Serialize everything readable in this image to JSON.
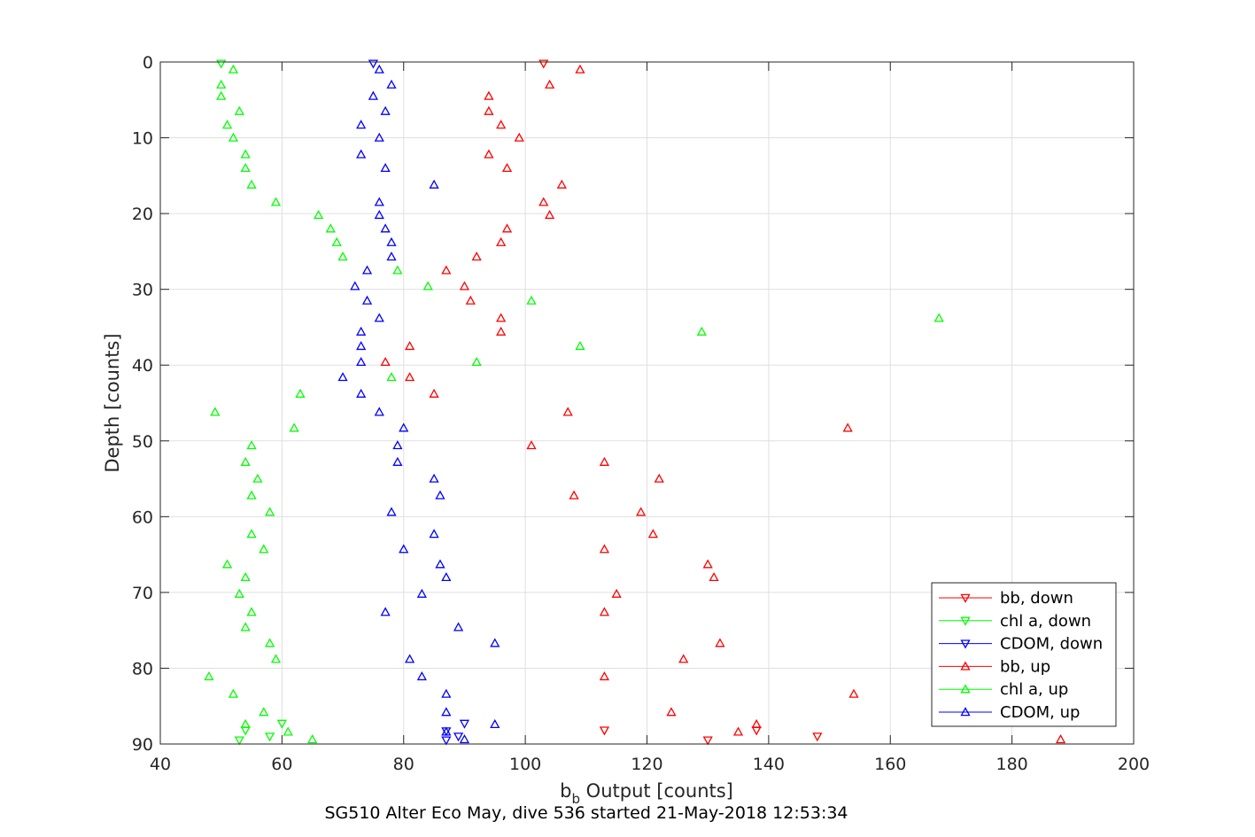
{
  "chart_data": {
    "type": "scatter",
    "xlabel_main": "b",
    "xlabel_sub": "b",
    "xlabel_rest": " Output [counts]",
    "ylabel": "Depth [counts]",
    "caption": "SG510 Alter Eco May, dive 536 started 21-May-2018 12:53:34",
    "xlim": [
      40,
      200
    ],
    "ylim": [
      0,
      90
    ],
    "y_reversed": true,
    "grid": true,
    "x_ticks": [
      40,
      60,
      80,
      100,
      120,
      140,
      160,
      180,
      200
    ],
    "y_ticks": [
      0,
      10,
      20,
      30,
      40,
      50,
      60,
      70,
      80,
      90
    ],
    "legend_position": "bottom-right",
    "colors": {
      "red": "#ff0000",
      "green": "#00ff00",
      "blue": "#0000ff"
    },
    "series": [
      {
        "name": "bb, down",
        "color": "#ff0000",
        "marker": "triangle-down",
        "points": [
          [
            103,
            0.2
          ],
          [
            113,
            88.2
          ],
          [
            138,
            88.2
          ],
          [
            148,
            89
          ],
          [
            130,
            89.5
          ]
        ]
      },
      {
        "name": "chl a, down",
        "color": "#00ff00",
        "marker": "triangle-down",
        "points": [
          [
            50,
            0.2
          ],
          [
            60,
            87.3
          ],
          [
            54,
            88.2
          ],
          [
            58,
            89
          ],
          [
            53,
            89.5
          ]
        ]
      },
      {
        "name": "CDOM, down",
        "color": "#0000ff",
        "marker": "triangle-down",
        "points": [
          [
            75,
            0.2
          ],
          [
            90,
            87.3
          ],
          [
            87,
            88.3
          ],
          [
            89,
            89
          ],
          [
            87,
            89.5
          ]
        ]
      },
      {
        "name": "bb, up",
        "color": "#ff0000",
        "marker": "triangle-up",
        "points": [
          [
            109,
            1
          ],
          [
            104,
            3
          ],
          [
            94,
            4.5
          ],
          [
            94,
            6.5
          ],
          [
            96,
            8.3
          ],
          [
            99,
            10
          ],
          [
            94,
            12.2
          ],
          [
            97,
            14
          ],
          [
            106,
            16.2
          ],
          [
            103,
            18.5
          ],
          [
            104,
            20.2
          ],
          [
            97,
            22
          ],
          [
            96,
            23.8
          ],
          [
            92,
            25.7
          ],
          [
            87,
            27.5
          ],
          [
            90,
            29.6
          ],
          [
            91,
            31.5
          ],
          [
            96,
            33.8
          ],
          [
            96,
            35.6
          ],
          [
            81,
            37.5
          ],
          [
            77,
            39.6
          ],
          [
            81,
            41.6
          ],
          [
            85,
            43.8
          ],
          [
            107,
            46.2
          ],
          [
            153,
            48.3
          ],
          [
            101,
            50.6
          ],
          [
            113,
            52.8
          ],
          [
            122,
            55
          ],
          [
            108,
            57.2
          ],
          [
            119,
            59.4
          ],
          [
            121,
            62.3
          ],
          [
            113,
            64.3
          ],
          [
            130,
            66.3
          ],
          [
            131,
            68
          ],
          [
            115,
            70.2
          ],
          [
            113,
            72.6
          ],
          [
            132,
            76.7
          ],
          [
            126,
            78.8
          ],
          [
            113,
            81.1
          ],
          [
            154,
            83.4
          ],
          [
            124,
            85.8
          ],
          [
            138,
            87.4
          ],
          [
            135,
            88.4
          ],
          [
            188,
            89.4
          ]
        ]
      },
      {
        "name": "chl a, up",
        "color": "#00ff00",
        "marker": "triangle-up",
        "points": [
          [
            52,
            1
          ],
          [
            50,
            3
          ],
          [
            50,
            4.5
          ],
          [
            53,
            6.5
          ],
          [
            51,
            8.3
          ],
          [
            52,
            10
          ],
          [
            54,
            12.2
          ],
          [
            54,
            14
          ],
          [
            55,
            16.2
          ],
          [
            59,
            18.5
          ],
          [
            66,
            20.2
          ],
          [
            68,
            22
          ],
          [
            69,
            23.8
          ],
          [
            70,
            25.7
          ],
          [
            79,
            27.5
          ],
          [
            84,
            29.6
          ],
          [
            101,
            31.5
          ],
          [
            168,
            33.8
          ],
          [
            129,
            35.6
          ],
          [
            109,
            37.5
          ],
          [
            92,
            39.6
          ],
          [
            78,
            41.6
          ],
          [
            63,
            43.8
          ],
          [
            49,
            46.2
          ],
          [
            62,
            48.3
          ],
          [
            55,
            50.6
          ],
          [
            54,
            52.8
          ],
          [
            56,
            55
          ],
          [
            55,
            57.2
          ],
          [
            58,
            59.4
          ],
          [
            55,
            62.3
          ],
          [
            57,
            64.3
          ],
          [
            51,
            66.3
          ],
          [
            54,
            68
          ],
          [
            53,
            70.2
          ],
          [
            55,
            72.6
          ],
          [
            54,
            74.6
          ],
          [
            58,
            76.7
          ],
          [
            59,
            78.8
          ],
          [
            48,
            81.1
          ],
          [
            52,
            83.4
          ],
          [
            57,
            85.8
          ],
          [
            54,
            87.4
          ],
          [
            61,
            88.4
          ],
          [
            65,
            89.4
          ]
        ]
      },
      {
        "name": "CDOM, up",
        "color": "#0000ff",
        "marker": "triangle-up",
        "points": [
          [
            76,
            1
          ],
          [
            78,
            3
          ],
          [
            75,
            4.5
          ],
          [
            77,
            6.5
          ],
          [
            73,
            8.3
          ],
          [
            76,
            10
          ],
          [
            73,
            12.2
          ],
          [
            77,
            14
          ],
          [
            85,
            16.2
          ],
          [
            76,
            18.5
          ],
          [
            76,
            20.2
          ],
          [
            77,
            22
          ],
          [
            78,
            23.8
          ],
          [
            78,
            25.7
          ],
          [
            74,
            27.5
          ],
          [
            72,
            29.6
          ],
          [
            74,
            31.5
          ],
          [
            76,
            33.8
          ],
          [
            73,
            35.6
          ],
          [
            73,
            37.5
          ],
          [
            73,
            39.6
          ],
          [
            70,
            41.6
          ],
          [
            73,
            43.8
          ],
          [
            76,
            46.2
          ],
          [
            80,
            48.3
          ],
          [
            79,
            50.6
          ],
          [
            79,
            52.8
          ],
          [
            85,
            55
          ],
          [
            86,
            57.2
          ],
          [
            78,
            59.4
          ],
          [
            85,
            62.3
          ],
          [
            80,
            64.3
          ],
          [
            86,
            66.3
          ],
          [
            87,
            68
          ],
          [
            83,
            70.2
          ],
          [
            77,
            72.6
          ],
          [
            89,
            74.6
          ],
          [
            95,
            76.7
          ],
          [
            81,
            78.8
          ],
          [
            83,
            81.1
          ],
          [
            87,
            83.4
          ],
          [
            87,
            85.8
          ],
          [
            95,
            87.4
          ],
          [
            87,
            88.4
          ],
          [
            90,
            89.4
          ]
        ]
      }
    ]
  }
}
